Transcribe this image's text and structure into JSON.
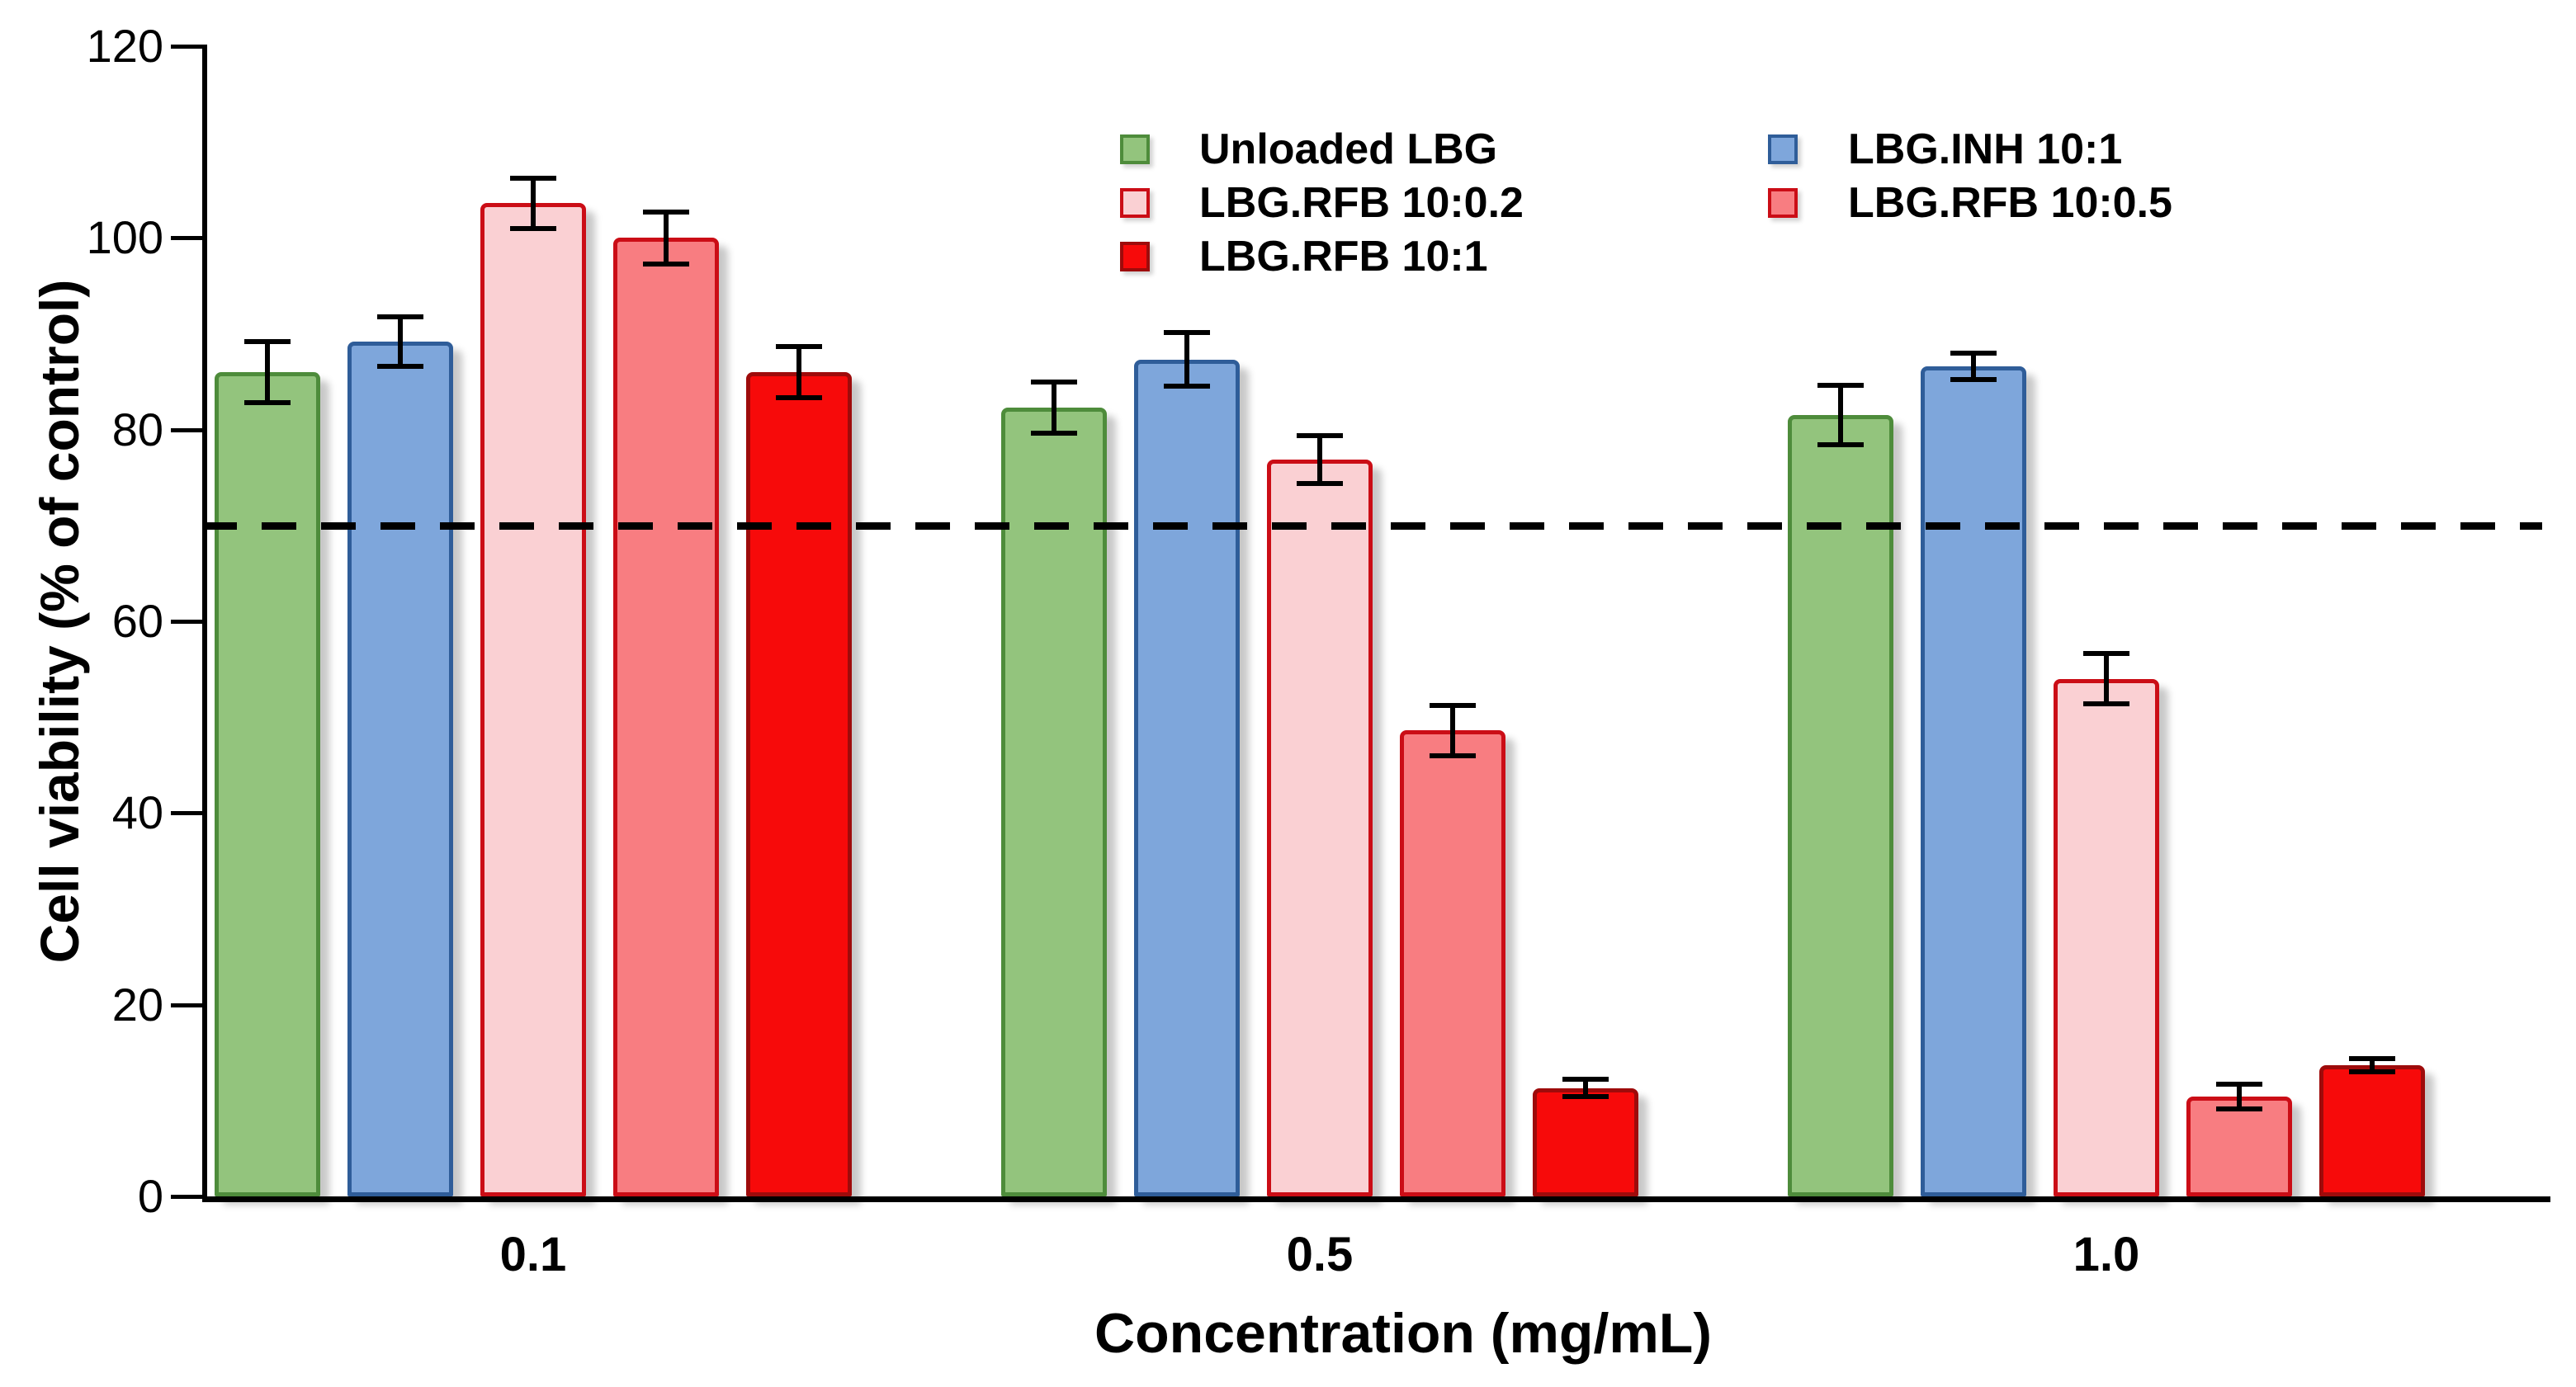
{
  "figure": {
    "background": "#ffffff",
    "xlabel": "Concentration (mg/mL)",
    "ylabel": "Cell viability (% of control)"
  },
  "chart_data": {
    "type": "bar",
    "title": "",
    "xlabel": "Concentration (mg/mL)",
    "ylabel": "Cell viability (% of control)",
    "categories": [
      "0.1",
      "0.5",
      "1.0"
    ],
    "ylim": [
      0,
      120
    ],
    "yticks": [
      0,
      20,
      40,
      60,
      80,
      100,
      120
    ],
    "grid": false,
    "legend_position": "top-center-two-columns",
    "reference_line": {
      "y": 70,
      "style": "dashed",
      "color": "#000000"
    },
    "series": [
      {
        "name": "Unloaded LBG",
        "fill": "#93C47D",
        "stroke": "#4E8C3B",
        "values": [
          86.0,
          82.3,
          81.5
        ],
        "errors": [
          3.2,
          2.7,
          3.1
        ]
      },
      {
        "name": "LBG.INH 10:1",
        "fill": "#7EA6DB",
        "stroke": "#2F5D99",
        "values": [
          89.2,
          87.3,
          86.6
        ],
        "errors": [
          2.6,
          2.8,
          1.4
        ]
      },
      {
        "name": "LBG.RFB 10:0.2",
        "fill": "#FAD0D3",
        "stroke": "#CB0D16",
        "values": [
          103.6,
          76.9,
          54.0
        ],
        "errors": [
          2.6,
          2.5,
          2.6
        ]
      },
      {
        "name": "LBG.RFB 10:0.5",
        "fill": "#F87D81",
        "stroke": "#CB0D16",
        "values": [
          100.0,
          48.6,
          10.4
        ],
        "errors": [
          2.7,
          2.6,
          1.3
        ]
      },
      {
        "name": "LBG.RFB 10:1",
        "fill": "#F70A0A",
        "stroke": "#9E0B0B",
        "values": [
          86.0,
          11.3,
          13.7
        ],
        "errors": [
          2.7,
          0.9,
          0.7
        ]
      }
    ],
    "legend_columns": [
      {
        "series_indices": [
          0,
          2,
          4
        ]
      },
      {
        "series_indices": [
          1,
          3
        ]
      }
    ]
  }
}
